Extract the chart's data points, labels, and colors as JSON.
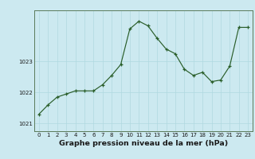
{
  "x": [
    0,
    1,
    2,
    3,
    4,
    5,
    6,
    7,
    8,
    9,
    10,
    11,
    12,
    13,
    14,
    15,
    16,
    17,
    18,
    19,
    20,
    21,
    22,
    23
  ],
  "y": [
    1021.3,
    1021.6,
    1021.85,
    1021.95,
    1022.05,
    1022.05,
    1022.05,
    1022.25,
    1022.55,
    1022.9,
    1024.05,
    1024.3,
    1024.15,
    1023.75,
    1023.4,
    1023.25,
    1022.75,
    1022.55,
    1022.65,
    1022.35,
    1022.4,
    1022.85,
    1024.1,
    1024.1
  ],
  "line_color": "#2a5e2a",
  "marker_color": "#2a5e2a",
  "bg_color": "#cce9f0",
  "grid_color": "#b0d8e0",
  "ylabel_ticks": [
    1021,
    1022,
    1023
  ],
  "ylim": [
    1020.75,
    1024.65
  ],
  "xlabel": "Graphe pression niveau de la mer (hPa)",
  "xtick_labels": [
    "0",
    "1",
    "2",
    "3",
    "4",
    "5",
    "6",
    "7",
    "8",
    "9",
    "10",
    "11",
    "12",
    "13",
    "14",
    "15",
    "16",
    "17",
    "18",
    "19",
    "20",
    "21",
    "22",
    "23"
  ],
  "tick_fontsize": 5.0,
  "label_fontsize": 6.8,
  "spine_color": "#5a7a5a"
}
